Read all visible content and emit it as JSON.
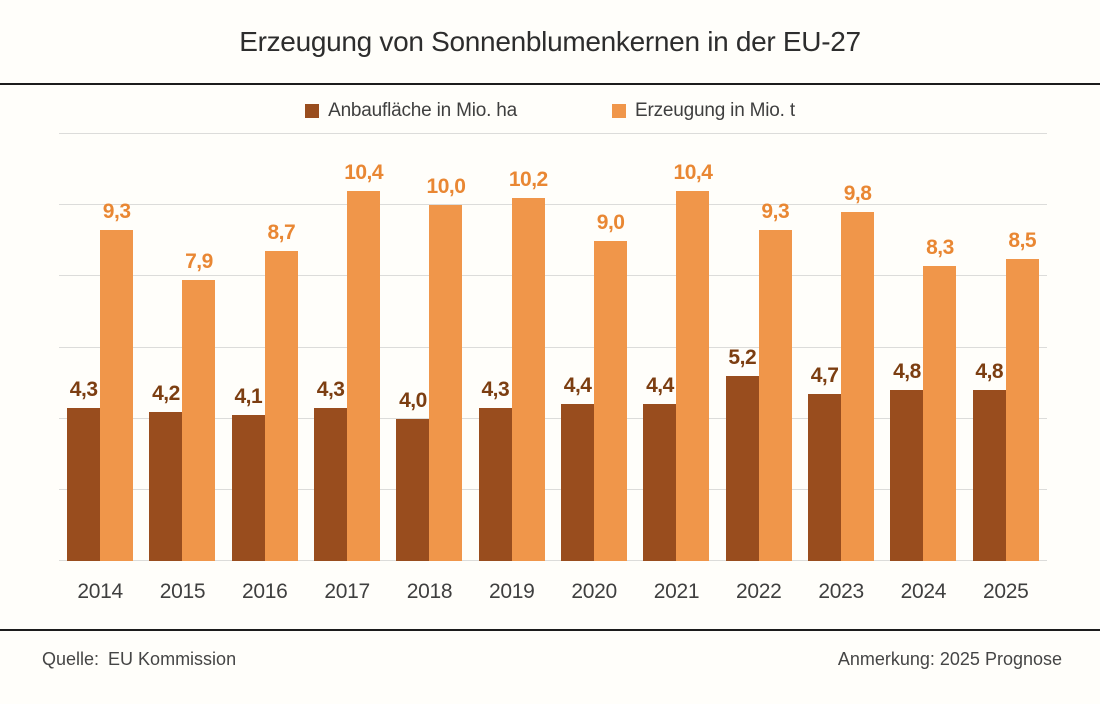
{
  "title": "Erzeugung von Sonnenblumenkernen in der EU-27",
  "legend": {
    "area_label": "Anbaufläche in Mio. ha",
    "production_label": "Erzeugung in Mio. t"
  },
  "footer": {
    "source_label": "Quelle:",
    "source_value": "EU Kommission",
    "note": "Anmerkung: 2025 Prognose"
  },
  "colors": {
    "background": "#FFFEFA",
    "title_text": "#2D2D2D",
    "axis_text": "#3F3F3F",
    "rule": "#1C1C1C",
    "gridline": "#DCDCDA",
    "area_bar": "#994D1E",
    "area_value_label": "#7C3E11",
    "production_bar": "#F0964A",
    "production_value_label": "#E98733"
  },
  "chart_data": {
    "type": "bar",
    "title": "Erzeugung von Sonnenblumenkernen in der EU-27",
    "categories": [
      "2014",
      "2015",
      "2016",
      "2017",
      "2018",
      "2019",
      "2020",
      "2021",
      "2022",
      "2023",
      "2024",
      "2025"
    ],
    "series": [
      {
        "name": "Anbaufläche in Mio. ha",
        "values": [
          4.3,
          4.2,
          4.1,
          4.3,
          4.0,
          4.3,
          4.4,
          4.4,
          5.2,
          4.7,
          4.8,
          4.8
        ],
        "color": "#994D1E",
        "label_color": "#7C3E11"
      },
      {
        "name": "Erzeugung in Mio. t",
        "values": [
          9.3,
          7.9,
          8.7,
          10.4,
          10.0,
          10.2,
          9.0,
          10.4,
          9.3,
          9.8,
          8.3,
          8.5
        ],
        "color": "#F0964A",
        "label_color": "#E98733"
      }
    ],
    "xlabel": "",
    "ylabel": "",
    "ylim": [
      0,
      12
    ],
    "grid_step": 2,
    "grid": true,
    "legend_position": "top",
    "value_labels": true,
    "decimal_separator": ","
  }
}
